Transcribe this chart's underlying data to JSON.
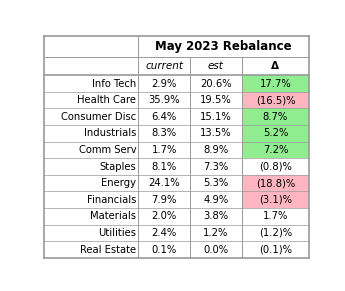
{
  "title": "May 2023 Rebalance",
  "col_headers": [
    "current",
    "est",
    "Δ"
  ],
  "sectors": [
    "Info Tech",
    "Health Care",
    "Consumer Disc",
    "Industrials",
    "Comm Serv",
    "Staples",
    "Energy",
    "Financials",
    "Materials",
    "Utilities",
    "Real Estate"
  ],
  "current": [
    "2.9%",
    "35.9%",
    "6.4%",
    "8.3%",
    "1.7%",
    "8.1%",
    "24.1%",
    "7.9%",
    "2.0%",
    "2.4%",
    "0.1%"
  ],
  "est": [
    "20.6%",
    "19.5%",
    "15.1%",
    "13.5%",
    "8.9%",
    "7.3%",
    "5.3%",
    "4.9%",
    "3.8%",
    "1.2%",
    "0.0%"
  ],
  "delta": [
    "17.7%",
    "(16.5)%",
    "8.7%",
    "5.2%",
    "7.2%",
    "(0.8)%",
    "(18.8)%",
    "(3.1)%",
    "1.7%",
    "(1.2)%",
    "(0.1)%"
  ],
  "delta_colors": [
    "#90EE90",
    "#FFB6C1",
    "#90EE90",
    "#90EE90",
    "#90EE90",
    "white",
    "#FFB6C1",
    "#FFB6C1",
    "white",
    "white",
    "white"
  ],
  "figsize": [
    3.45,
    2.91
  ],
  "dpi": 100,
  "line_color": "#999999",
  "title_fontsize": 8.5,
  "header_fontsize": 7.5,
  "data_fontsize": 7.2
}
